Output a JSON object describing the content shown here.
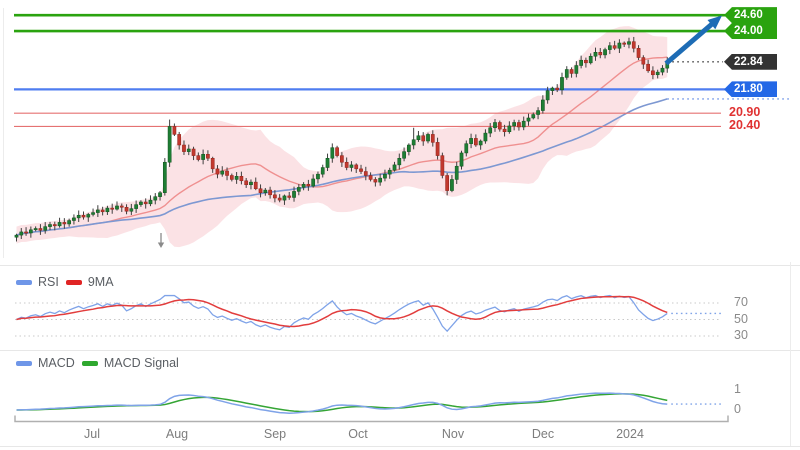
{
  "price_panel": {
    "levels": {
      "resistance_upper": {
        "label": "24.60",
        "value": 24.6,
        "style": "tag",
        "tag_bg": "#2aa30f",
        "line_color": "#2aa30f",
        "line_width": 2.6
      },
      "resistance_lower": {
        "label": "24.00",
        "value": 24.0,
        "style": "tag",
        "tag_bg": "#2aa30f",
        "line_color": "#2aa30f",
        "line_width": 2.6
      },
      "last_price": {
        "label": "22.84",
        "value": 22.84,
        "style": "tag",
        "tag_bg": "#333333",
        "line_color": "none",
        "line_width": 0
      },
      "support_blue": {
        "label": "21.80",
        "value": 21.8,
        "style": "tag",
        "tag_bg": "#2468e6",
        "line_color": "#4f7df0",
        "line_width": 2.3
      },
      "level_red_1": {
        "label": "20.90",
        "value": 20.9,
        "style": "text",
        "text_color": "#e03232",
        "line_color": "#e57272",
        "line_width": 1.1
      },
      "level_red_2": {
        "label": "20.40",
        "value": 20.4,
        "style": "text",
        "text_color": "#e03232",
        "line_color": "#e57272",
        "line_width": 1.1
      }
    },
    "candle_up_color": "#1e7e34",
    "candle_down_color": "#c2382e",
    "band_fill": "rgba(244,166,176,0.33)",
    "mid_line_color": "#ef9090",
    "slow_line_color": "#7d98d2"
  },
  "rsi_panel": {
    "legend": [
      {
        "label": "RSI",
        "color": "#6f96e8"
      },
      {
        "label": "9MA",
        "color": "#e02424"
      }
    ],
    "axis_labels": [
      "70",
      "50",
      "30"
    ],
    "gridlines": [
      70,
      50,
      30
    ],
    "line_color": "#7fa3e8",
    "ma_color": "#e23d3d"
  },
  "macd_panel": {
    "legend": [
      {
        "label": "MACD",
        "color": "#6f96e8"
      },
      {
        "label": "MACD Signal",
        "color": "#2fa82f"
      }
    ],
    "axis_labels": [
      "1",
      "0"
    ],
    "gridlines": [
      1,
      0
    ],
    "line_color": "#7fa3e8",
    "signal_color": "#35a535"
  },
  "x_axis": {
    "labels": [
      "Jul",
      "Aug",
      "Sep",
      "Oct",
      "Nov",
      "Dec",
      "2024"
    ],
    "positions": [
      92,
      177,
      275,
      358,
      453,
      543,
      630
    ]
  },
  "annotations": {
    "breakout_arrow": {
      "color": "#1d6cb5",
      "points_to": "24.60"
    },
    "down_arrow": {
      "color": "#8a8a8a"
    }
  },
  "chart_data": {
    "type": "candlestick",
    "title": "",
    "x_categories": "daily candles, mid-June to mid-January",
    "xlabel": "",
    "ylabel": "",
    "ylim": [
      15.7,
      24.9
    ],
    "first_open": 16.22,
    "closes": [
      16.3,
      16.42,
      16.38,
      16.5,
      16.55,
      16.48,
      16.62,
      16.7,
      16.65,
      16.78,
      16.72,
      16.85,
      16.95,
      17.05,
      16.98,
      17.08,
      17.15,
      17.25,
      17.18,
      17.32,
      17.28,
      17.4,
      17.35,
      17.2,
      17.3,
      17.45,
      17.55,
      17.48,
      17.62,
      17.75,
      17.9,
      19.05,
      20.4,
      20.1,
      19.7,
      19.45,
      19.55,
      19.3,
      19.15,
      19.35,
      19.2,
      18.8,
      18.6,
      18.72,
      18.55,
      18.4,
      18.52,
      18.35,
      18.2,
      18.3,
      18.05,
      17.9,
      18.0,
      17.82,
      17.7,
      17.62,
      17.78,
      17.72,
      17.95,
      18.1,
      18.22,
      18.15,
      18.42,
      18.6,
      18.85,
      19.2,
      19.6,
      19.3,
      19.05,
      18.85,
      18.95,
      18.8,
      18.7,
      18.55,
      18.4,
      18.3,
      18.45,
      18.6,
      18.75,
      18.95,
      19.2,
      19.45,
      19.7,
      19.9,
      20.05,
      19.85,
      20.1,
      19.8,
      19.3,
      18.55,
      17.98,
      18.4,
      18.9,
      19.4,
      19.75,
      19.95,
      19.7,
      19.85,
      20.15,
      20.35,
      20.55,
      20.3,
      20.2,
      20.42,
      20.55,
      20.38,
      20.6,
      20.72,
      20.85,
      21.0,
      21.4,
      21.75,
      21.85,
      21.78,
      22.25,
      22.55,
      22.4,
      22.7,
      22.9,
      22.8,
      23.05,
      23.2,
      23.1,
      23.3,
      23.45,
      23.35,
      23.55,
      23.5,
      23.6,
      23.35,
      23.0,
      22.75,
      22.5,
      22.35,
      22.45,
      22.6,
      22.84
    ],
    "wick_overrides": {
      "32": {
        "h": 20.66
      },
      "83": {
        "h": 20.35
      },
      "90": {
        "l": 17.8
      },
      "128": {
        "h": 23.75
      }
    },
    "overlays": {
      "band": "SMA20 +/-2sd",
      "mid_line": "SMA20",
      "slow_line": "SMA50"
    },
    "sub_panels": {
      "rsi": "RSI(14) with 9MA",
      "macd": "EMA12-EMA26 with 9EMA signal"
    },
    "levels": [
      24.6,
      24.0,
      22.84,
      21.8,
      20.9,
      20.4
    ],
    "rsi_gridlines": [
      70,
      50,
      30
    ],
    "macd_gridlines": [
      1,
      0
    ]
  }
}
